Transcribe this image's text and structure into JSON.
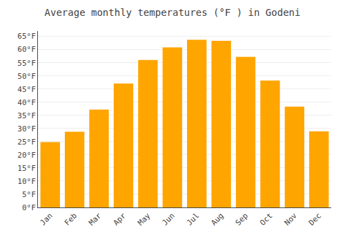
{
  "chart_data": {
    "type": "bar",
    "title": "Average monthly temperatures (°F ) in Godeni",
    "categories": [
      "Jan",
      "Feb",
      "Mar",
      "Apr",
      "May",
      "Jun",
      "Jul",
      "Aug",
      "Sep",
      "Oct",
      "Nov",
      "Dec"
    ],
    "values": [
      24.8,
      28.8,
      37.2,
      47.1,
      56.0,
      60.8,
      63.7,
      63.3,
      57.2,
      48.2,
      38.3,
      28.9
    ],
    "color": "#FFA500",
    "ylim": [
      0,
      67
    ],
    "yticks": [
      {
        "value": 0,
        "label": "0°F"
      },
      {
        "value": 5,
        "label": "5°F"
      },
      {
        "value": 10,
        "label": "10°F"
      },
      {
        "value": 15,
        "label": "15°F"
      },
      {
        "value": 20,
        "label": "20°F"
      },
      {
        "value": 25,
        "label": "25°F"
      },
      {
        "value": 30,
        "label": "30°F"
      },
      {
        "value": 35,
        "label": "35°F"
      },
      {
        "value": 40,
        "label": "40°F"
      },
      {
        "value": 45,
        "label": "45°F"
      },
      {
        "value": 50,
        "label": "50°F"
      },
      {
        "value": 55,
        "label": "55°F"
      },
      {
        "value": 60,
        "label": "60°F"
      },
      {
        "value": 65,
        "label": "65°F"
      }
    ],
    "grid": true
  }
}
